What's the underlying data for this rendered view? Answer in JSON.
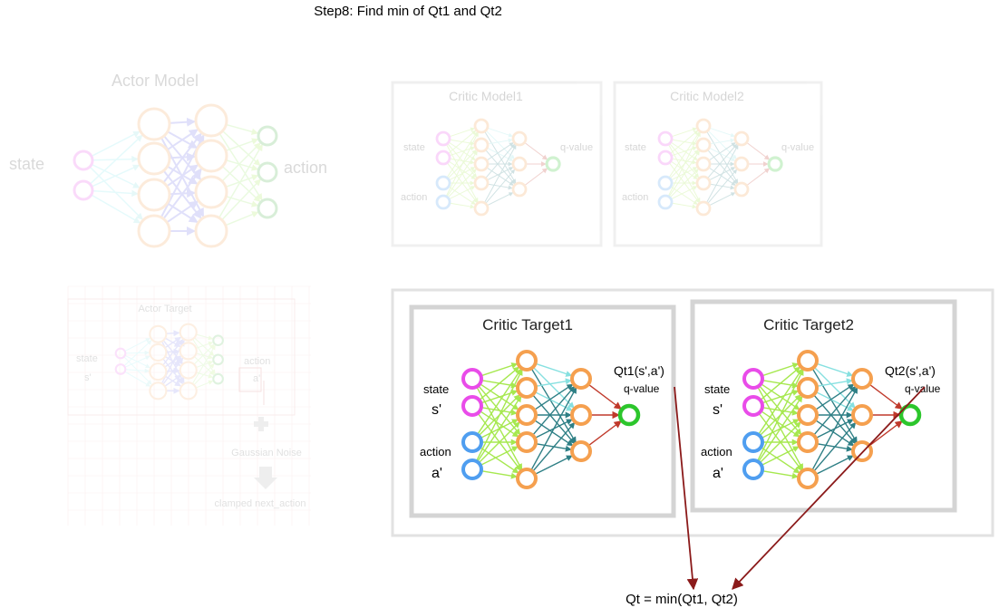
{
  "title": "Step8: Find min of Qt1 and Qt2",
  "actor_model": {
    "title": "Actor Model",
    "input_label": "state",
    "output_label": "action"
  },
  "critic_model1": {
    "title": "Critic Model1",
    "state_label": "state",
    "action_label": "action",
    "output_label": "q-value"
  },
  "critic_model2": {
    "title": "Critic Model2",
    "state_label": "state",
    "action_label": "action",
    "output_label": "q-value"
  },
  "actor_target": {
    "title": "Actor Target",
    "state_label": "state",
    "state_sub": "s'",
    "action_label": "action",
    "action_sub": "a'",
    "noise_label": "Gaussian Noise",
    "clamp_label": "clamped next_action"
  },
  "critic_target1": {
    "title": "Critic Target1",
    "state_label": "state",
    "state_sub": "s'",
    "action_label": "action",
    "action_sub": "a'",
    "output_label": "q-value",
    "q_label": "Qt1(s',a')"
  },
  "critic_target2": {
    "title": "Critic Target2",
    "state_label": "state",
    "state_sub": "s'",
    "action_label": "action",
    "action_sub": "a'",
    "output_label": "q-value",
    "q_label": "Qt2(s',a')"
  },
  "result_label": "Qt = min(Qt1, Qt2)",
  "colors": {
    "state_node": "#e94ce9",
    "action_node": "#4f9ef0",
    "hidden_node": "#f5a04f",
    "output_node": "#2cc62c",
    "input_edge": "#a6e84f",
    "mid_edge": "#86e0e0",
    "mid_edge_dark": "#2e7f85",
    "out_edge": "#c0392b",
    "min_arrow": "#8b1a1a",
    "actor_in_edge": "#7fe8f0",
    "actor_hidden_edge": "#6b6bea",
    "actor_out_edge": "#9be86b",
    "actor_output_node": "#40b040"
  }
}
